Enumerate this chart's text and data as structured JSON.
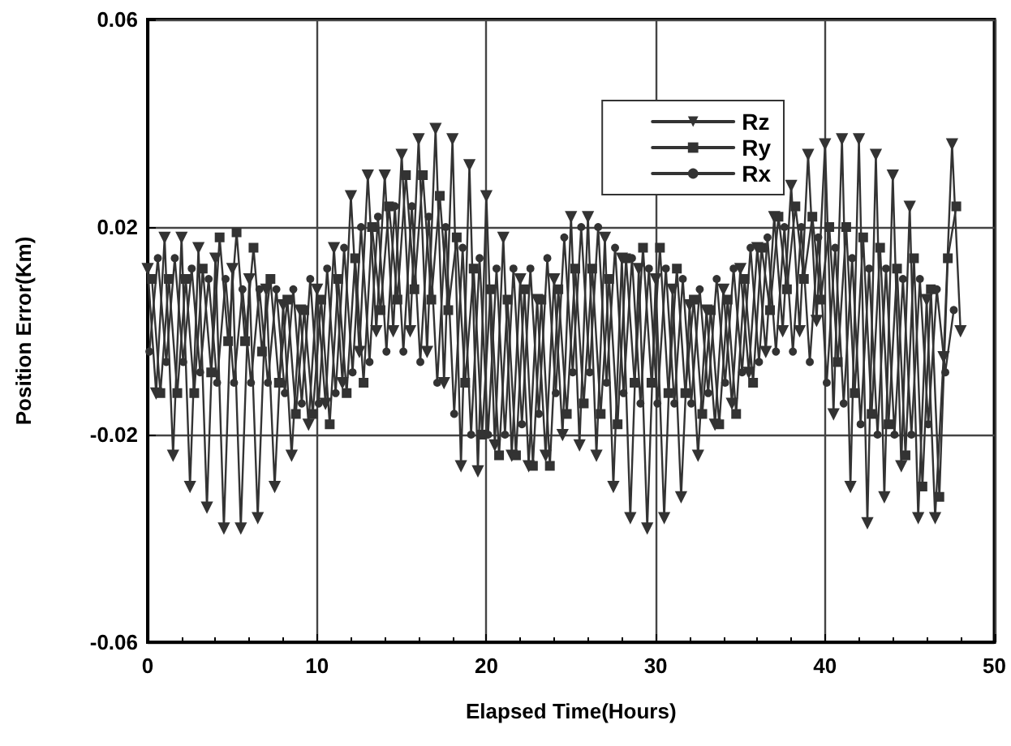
{
  "chart_data": {
    "type": "line",
    "xlabel": "Elapsed Time(Hours)",
    "ylabel": "Position Error(Km)",
    "xlim": [
      0,
      50
    ],
    "xticks": [
      0,
      10,
      20,
      30,
      40,
      50
    ],
    "ylim": [
      -0.06,
      0.06
    ],
    "yticks": [
      -0.06,
      -0.02,
      0.02,
      0.06
    ],
    "grid": true,
    "legend": "top right",
    "line_style": "solid",
    "series": [
      {
        "name": "Rz",
        "color": "#333333",
        "marker": "triangle",
        "x": [
          0,
          0.5,
          1,
          1.5,
          2,
          2.5,
          3,
          3.5,
          4,
          4.5,
          5,
          5.5,
          6,
          6.5,
          7,
          7.5,
          8,
          8.5,
          9,
          9.5,
          10,
          10.5,
          11,
          11.5,
          12,
          12.5,
          13,
          13.5,
          14,
          14.5,
          15,
          15.5,
          16,
          16.5,
          17,
          17.5,
          18,
          18.5,
          19,
          19.5,
          20,
          20.5,
          21,
          21.5,
          22,
          22.5,
          23,
          23.5,
          24,
          24.5,
          25,
          25.5,
          26,
          26.5,
          27,
          27.5,
          28,
          28.5,
          29,
          29.5,
          30,
          30.5,
          31,
          31.5,
          32,
          32.5,
          33,
          33.5,
          34,
          34.5,
          35,
          35.5,
          36,
          36.5,
          37,
          37.5,
          38,
          38.5,
          39,
          39.5,
          40,
          40.5,
          41,
          41.5,
          42,
          42.5,
          43,
          43.5,
          44,
          44.5,
          45,
          45.5,
          46,
          46.5,
          47,
          47.5,
          48
        ],
        "values": [
          0.012,
          -0.012,
          0.018,
          -0.024,
          0.018,
          -0.03,
          0.016,
          -0.034,
          0.014,
          -0.038,
          0.012,
          -0.038,
          0.01,
          -0.036,
          0.008,
          -0.03,
          0.005,
          -0.024,
          0.004,
          -0.018,
          0.008,
          -0.014,
          0.016,
          -0.01,
          0.026,
          -0.004,
          0.03,
          0.0,
          0.03,
          0.0,
          0.034,
          0.0,
          0.037,
          -0.004,
          0.039,
          -0.01,
          0.037,
          -0.026,
          0.032,
          -0.027,
          0.026,
          -0.022,
          0.018,
          -0.024,
          0.01,
          -0.026,
          0.006,
          -0.024,
          0.01,
          -0.02,
          0.022,
          -0.022,
          0.022,
          -0.024,
          0.018,
          -0.03,
          0.014,
          -0.036,
          0.012,
          -0.038,
          0.01,
          -0.036,
          0.008,
          -0.032,
          0.005,
          -0.024,
          0.004,
          -0.018,
          0.008,
          -0.014,
          0.012,
          -0.008,
          0.016,
          -0.004,
          0.022,
          0.0,
          0.028,
          0.0,
          0.034,
          0.002,
          0.036,
          -0.016,
          0.037,
          -0.03,
          0.037,
          -0.037,
          0.034,
          -0.032,
          0.03,
          -0.026,
          0.024,
          -0.036,
          0.006,
          -0.036,
          -0.005,
          0.036,
          0.0
        ]
      },
      {
        "name": "Ry",
        "color": "#333333",
        "marker": "square",
        "x": [
          0.25,
          0.75,
          1.25,
          1.75,
          2.25,
          2.75,
          3.25,
          3.75,
          4.25,
          4.75,
          5.25,
          5.75,
          6.25,
          6.75,
          7.25,
          7.75,
          8.25,
          8.75,
          9.25,
          9.75,
          10.25,
          10.75,
          11.25,
          11.75,
          12.25,
          12.75,
          13.25,
          13.75,
          14.25,
          14.75,
          15.25,
          15.75,
          16.25,
          16.75,
          17.25,
          17.75,
          18.25,
          18.75,
          19.25,
          19.75,
          20.25,
          20.75,
          21.25,
          21.75,
          22.25,
          22.75,
          23.25,
          23.75,
          24.25,
          24.75,
          25.25,
          25.75,
          26.25,
          26.75,
          27.25,
          27.75,
          28.25,
          28.75,
          29.25,
          29.75,
          30.25,
          30.75,
          31.25,
          31.75,
          32.25,
          32.75,
          33.25,
          33.75,
          34.25,
          34.75,
          35.25,
          35.75,
          36.25,
          36.75,
          37.25,
          37.75,
          38.25,
          38.75,
          39.25,
          39.75,
          40.25,
          40.75,
          41.25,
          41.75,
          42.25,
          42.75,
          43.25,
          43.75,
          44.25,
          44.75,
          45.25,
          45.75,
          46.25,
          46.75,
          47.25,
          47.75
        ],
        "values": [
          0.01,
          -0.012,
          0.01,
          -0.012,
          0.01,
          -0.012,
          0.012,
          -0.008,
          0.018,
          -0.002,
          0.019,
          -0.002,
          0.016,
          -0.004,
          0.01,
          -0.01,
          0.006,
          -0.016,
          0.004,
          -0.016,
          0.006,
          -0.018,
          0.01,
          -0.012,
          0.014,
          -0.01,
          0.02,
          0.004,
          0.024,
          0.006,
          0.03,
          0.008,
          0.03,
          0.006,
          0.026,
          0.004,
          0.018,
          -0.01,
          0.012,
          -0.02,
          0.008,
          -0.024,
          0.006,
          -0.024,
          0.008,
          -0.026,
          0.006,
          -0.026,
          0.008,
          -0.016,
          0.012,
          -0.014,
          0.012,
          -0.016,
          0.01,
          -0.018,
          0.014,
          -0.01,
          0.016,
          -0.01,
          0.016,
          -0.012,
          0.012,
          -0.012,
          0.006,
          -0.016,
          0.004,
          -0.018,
          0.006,
          -0.016,
          0.01,
          -0.01,
          0.016,
          0.004,
          0.022,
          0.008,
          0.024,
          0.01,
          0.022,
          0.006,
          0.02,
          -0.006,
          0.02,
          -0.012,
          0.018,
          -0.016,
          0.016,
          -0.018,
          0.012,
          -0.024,
          0.014,
          -0.03,
          0.008,
          -0.032,
          0.014,
          0.024
        ]
      },
      {
        "name": "Rx",
        "color": "#333333",
        "marker": "circle",
        "x": [
          0.1,
          0.6,
          1.1,
          1.6,
          2.1,
          2.6,
          3.1,
          3.6,
          4.1,
          4.6,
          5.1,
          5.6,
          6.1,
          6.6,
          7.1,
          7.6,
          8.1,
          8.6,
          9.1,
          9.6,
          10.1,
          10.6,
          11.1,
          11.6,
          12.1,
          12.6,
          13.1,
          13.6,
          14.1,
          14.6,
          15.1,
          15.6,
          16.1,
          16.6,
          17.1,
          17.6,
          18.1,
          18.6,
          19.1,
          19.6,
          20.1,
          20.6,
          21.1,
          21.6,
          22.1,
          22.6,
          23.1,
          23.6,
          24.1,
          24.6,
          25.1,
          25.6,
          26.1,
          26.6,
          27.1,
          27.6,
          28.1,
          28.6,
          29.1,
          29.6,
          30.1,
          30.6,
          31.1,
          31.6,
          32.1,
          32.6,
          33.1,
          33.6,
          34.1,
          34.6,
          35.1,
          35.6,
          36.1,
          36.6,
          37.1,
          37.6,
          38.1,
          38.6,
          39.1,
          39.6,
          40.1,
          40.6,
          41.1,
          41.6,
          42.1,
          42.6,
          43.1,
          43.6,
          44.1,
          44.6,
          45.1,
          45.6,
          46.1,
          46.6,
          47.1,
          47.6
        ],
        "values": [
          -0.004,
          0.014,
          -0.006,
          0.014,
          -0.006,
          0.012,
          -0.008,
          0.01,
          -0.01,
          0.01,
          -0.01,
          0.008,
          -0.01,
          0.008,
          -0.01,
          0.008,
          -0.012,
          0.008,
          -0.014,
          0.01,
          -0.014,
          0.012,
          -0.012,
          0.016,
          -0.008,
          0.02,
          -0.006,
          0.022,
          -0.004,
          0.024,
          -0.004,
          0.024,
          -0.006,
          0.022,
          -0.01,
          0.02,
          -0.016,
          0.016,
          -0.02,
          0.014,
          -0.02,
          0.012,
          -0.02,
          0.012,
          -0.018,
          0.012,
          -0.016,
          0.014,
          -0.012,
          0.018,
          -0.008,
          0.02,
          -0.008,
          0.02,
          -0.01,
          0.016,
          -0.012,
          0.014,
          -0.014,
          0.012,
          -0.014,
          0.012,
          -0.014,
          0.01,
          -0.014,
          0.008,
          -0.012,
          0.01,
          -0.01,
          0.012,
          -0.008,
          0.016,
          -0.006,
          0.018,
          -0.004,
          0.02,
          -0.004,
          0.02,
          -0.006,
          0.018,
          -0.01,
          0.016,
          -0.014,
          0.014,
          -0.018,
          0.012,
          -0.02,
          0.012,
          -0.02,
          0.01,
          -0.02,
          0.01,
          -0.018,
          0.008,
          -0.008,
          0.004
        ]
      }
    ]
  }
}
